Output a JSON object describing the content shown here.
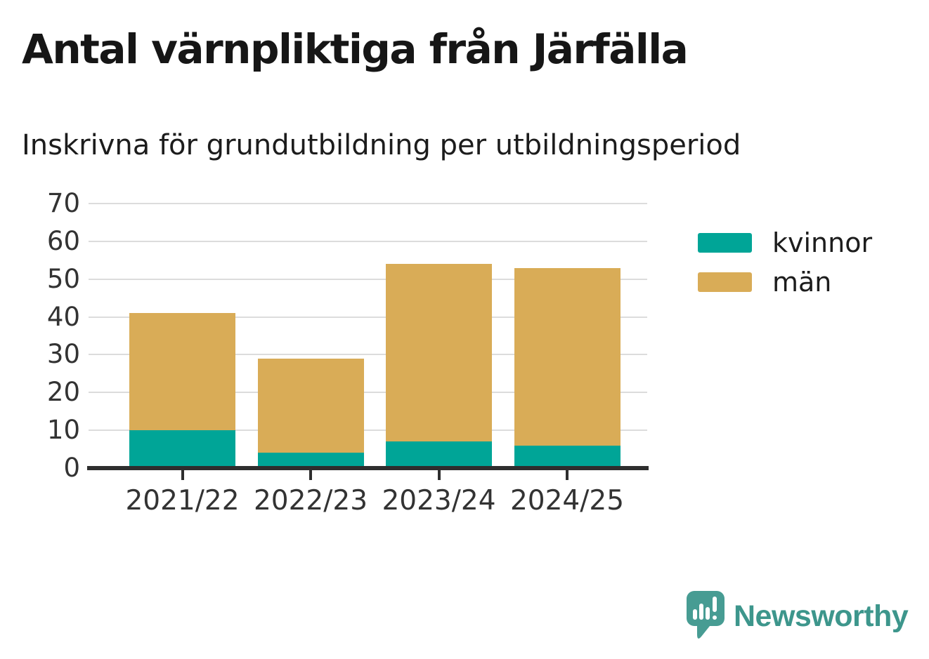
{
  "header": {
    "title": "Antal värnpliktiga från Järfälla",
    "subtitle": "Inskrivna för grundutbildning per utbildningsperiod"
  },
  "chart_data": {
    "type": "bar",
    "stacked": true,
    "categories": [
      "2021/22",
      "2022/23",
      "2023/24",
      "2024/25"
    ],
    "series": [
      {
        "name": "kvinnor",
        "color": "#00a597",
        "values": [
          10,
          4,
          7,
          6
        ]
      },
      {
        "name": "män",
        "color": "#d9ac57",
        "values": [
          31,
          25,
          47,
          47
        ]
      }
    ],
    "stack_totals": [
      41,
      29,
      54,
      53
    ],
    "xlabel": "",
    "ylabel": "",
    "ylim": [
      0,
      70
    ],
    "yticks": [
      0,
      10,
      20,
      30,
      40,
      50,
      60,
      70
    ],
    "grid": true,
    "legend_position": "right-of-plot"
  },
  "branding": {
    "name": "Newsworthy",
    "icon": "newsworthy-speech-bubble-bar-chart-icon",
    "wordmark_color": "#3d968c",
    "icon_color": "#479c93"
  },
  "colors": {
    "axis": "#2e2e2e",
    "gridline": "#dcdcdc",
    "tick_label": "#333333",
    "title": "#161616"
  }
}
